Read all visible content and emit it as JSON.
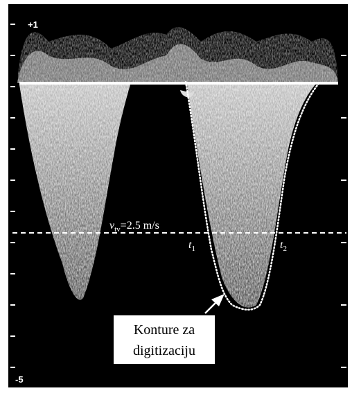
{
  "scale": {
    "top": "+1",
    "bottom": "-5"
  },
  "threshold": {
    "symbol": "v",
    "subscript": "tv",
    "value": "=2.5 m/s"
  },
  "markers": [
    {
      "symbol": "t",
      "subscript": "1"
    },
    {
      "symbol": "t",
      "subscript": "2"
    }
  ],
  "annotation": {
    "lines": [
      "Konture za",
      "digitizaciju"
    ]
  }
}
